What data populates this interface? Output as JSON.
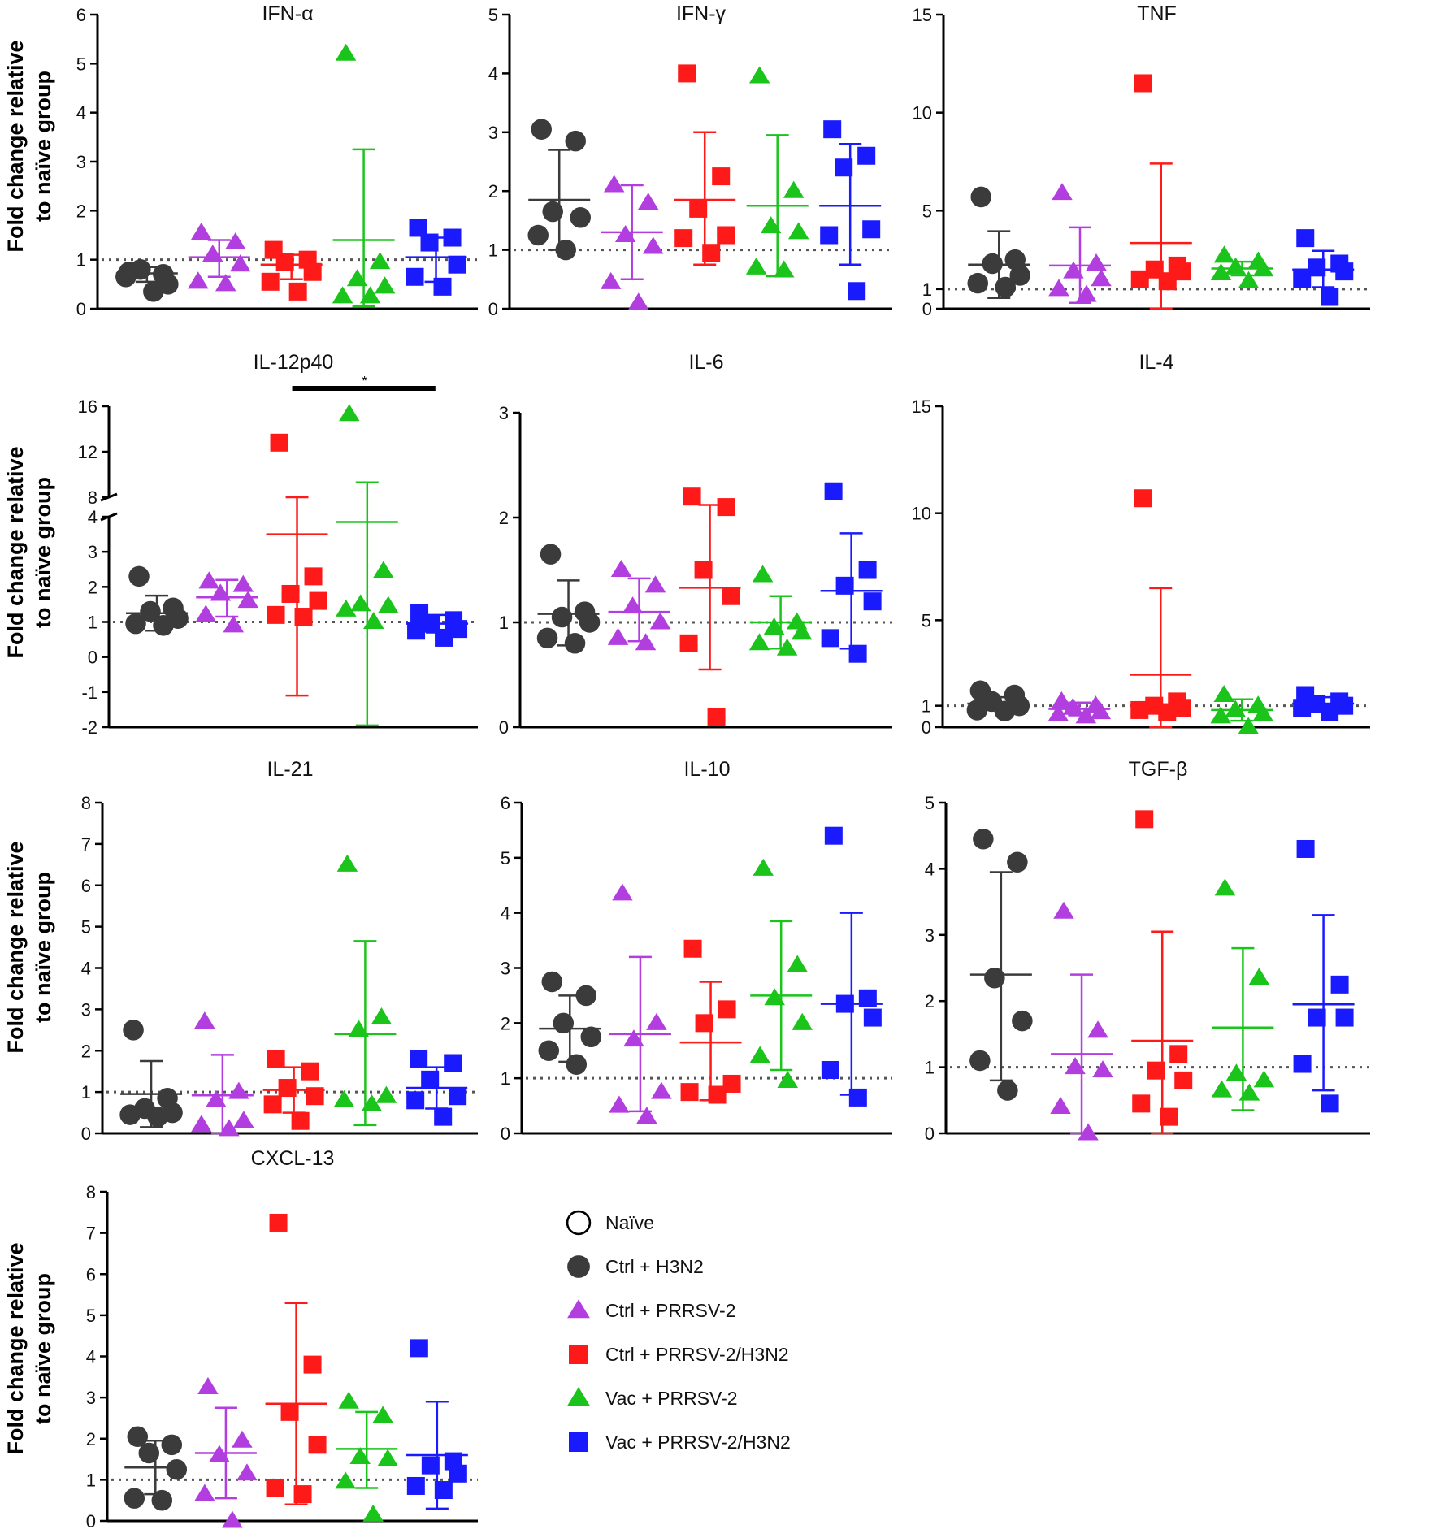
{
  "chart_data": [
    {
      "type": "scatter",
      "title": "IFN-α",
      "ylabel": "Fold change relative to naïve group",
      "ylim": [
        0,
        6
      ],
      "yticks": [
        0,
        1,
        2,
        3,
        4,
        5,
        6
      ],
      "groups": [
        {
          "series": 0,
          "points": [
            0.75,
            0.7,
            0.8,
            0.5,
            0.65,
            0.35
          ],
          "mean": 0.72,
          "sd_low": 0.55,
          "sd_high": 0.85
        },
        {
          "series": 1,
          "points": [
            1.55,
            1.35,
            1.1,
            0.9,
            0.55,
            0.5
          ],
          "mean": 1.05,
          "sd_low": 0.65,
          "sd_high": 1.4
        },
        {
          "series": 2,
          "points": [
            1.2,
            1.0,
            0.95,
            0.75,
            0.55,
            0.35
          ],
          "mean": 0.9,
          "sd_low": 0.6,
          "sd_high": 1.1
        },
        {
          "series": 3,
          "points": [
            5.2,
            0.95,
            0.6,
            0.45,
            0.25,
            0.25
          ],
          "mean": 1.4,
          "sd_low": 0.05,
          "sd_high": 3.25
        },
        {
          "series": 4,
          "points": [
            1.65,
            1.45,
            1.35,
            0.9,
            0.65,
            0.45
          ],
          "mean": 1.05,
          "sd_low": 0.55,
          "sd_high": 1.45
        }
      ]
    },
    {
      "type": "scatter",
      "title": "IFN-γ",
      "ylabel": "",
      "ylim": [
        0,
        5
      ],
      "yticks": [
        0,
        1,
        2,
        3,
        4,
        5
      ],
      "groups": [
        {
          "series": 0,
          "points": [
            3.05,
            2.85,
            1.65,
            1.55,
            1.25,
            1.0
          ],
          "mean": 1.85,
          "sd_low": 1.0,
          "sd_high": 2.7
        },
        {
          "series": 1,
          "points": [
            2.1,
            1.8,
            1.25,
            1.05,
            0.45,
            0.1
          ],
          "mean": 1.3,
          "sd_low": 0.5,
          "sd_high": 2.1
        },
        {
          "series": 2,
          "points": [
            4.0,
            2.25,
            1.7,
            1.25,
            1.2,
            0.95
          ],
          "mean": 1.85,
          "sd_low": 0.75,
          "sd_high": 3.0
        },
        {
          "series": 3,
          "points": [
            3.95,
            2.0,
            1.4,
            1.3,
            0.7,
            0.65
          ],
          "mean": 1.75,
          "sd_low": 0.55,
          "sd_high": 2.95
        },
        {
          "series": 4,
          "points": [
            3.05,
            2.6,
            2.4,
            1.35,
            1.25,
            0.3
          ],
          "mean": 1.75,
          "sd_low": 0.75,
          "sd_high": 2.8
        }
      ]
    },
    {
      "type": "scatter",
      "title": "TNF",
      "ylabel": "",
      "ylim": [
        0,
        15
      ],
      "yticks": [
        0,
        1,
        5,
        10,
        15
      ],
      "groups": [
        {
          "series": 0,
          "points": [
            5.7,
            2.5,
            2.3,
            1.7,
            1.3,
            1.1
          ],
          "mean": 2.25,
          "sd_low": 0.55,
          "sd_high": 3.95
        },
        {
          "series": 1,
          "points": [
            5.9,
            2.3,
            1.9,
            1.5,
            1.0,
            0.7
          ],
          "mean": 2.2,
          "sd_low": 0.3,
          "sd_high": 4.15
        },
        {
          "series": 2,
          "points": [
            11.5,
            2.2,
            2.0,
            1.9,
            1.5,
            1.4
          ],
          "mean": 3.35,
          "sd_low": 0.0,
          "sd_high": 7.4
        },
        {
          "series": 3,
          "points": [
            2.7,
            2.4,
            2.1,
            2.0,
            1.8,
            1.4
          ],
          "mean": 2.05,
          "sd_low": 1.7,
          "sd_high": 2.4
        },
        {
          "series": 4,
          "points": [
            3.6,
            2.3,
            2.1,
            1.9,
            1.5,
            0.6
          ],
          "mean": 2.0,
          "sd_low": 1.1,
          "sd_high": 2.95
        }
      ]
    },
    {
      "type": "scatter",
      "title": "IL-12p40",
      "ylabel": "Fold change relative to naïve group",
      "ylim": [
        -2,
        16
      ],
      "yticks": [
        -2,
        -1,
        0,
        1,
        2,
        3,
        4,
        8,
        12,
        16
      ],
      "axis_break": [
        4,
        8
      ],
      "significance": {
        "from_group": 2,
        "to_group": 3,
        "label": "*"
      },
      "groups": [
        {
          "series": 0,
          "points": [
            2.3,
            1.4,
            1.3,
            1.1,
            0.95,
            0.9
          ],
          "mean": 1.25,
          "sd_low": 0.75,
          "sd_high": 1.75
        },
        {
          "series": 1,
          "points": [
            2.15,
            2.05,
            1.8,
            1.6,
            1.2,
            0.9
          ],
          "mean": 1.7,
          "sd_low": 1.15,
          "sd_high": 2.2
        },
        {
          "series": 2,
          "points": [
            12.8,
            2.3,
            1.8,
            1.6,
            1.2,
            1.15
          ],
          "mean": 3.5,
          "sd_low": -1.1,
          "sd_high": 8.0
        },
        {
          "series": 3,
          "points": [
            15.3,
            2.45,
            1.5,
            1.45,
            1.35,
            1.0
          ],
          "mean": 3.85,
          "sd_low": -1.95,
          "sd_high": 9.3
        },
        {
          "series": 4,
          "points": [
            1.25,
            1.05,
            0.95,
            0.8,
            0.75,
            0.55
          ],
          "mean": 0.95,
          "sd_low": 0.7,
          "sd_high": 1.2
        }
      ]
    },
    {
      "type": "scatter",
      "title": "IL-6",
      "ylabel": "",
      "ylim": [
        0,
        3
      ],
      "yticks": [
        0,
        1,
        2,
        3
      ],
      "groups": [
        {
          "series": 0,
          "points": [
            1.65,
            1.1,
            1.05,
            1.0,
            0.85,
            0.8
          ],
          "mean": 1.08,
          "sd_low": 0.78,
          "sd_high": 1.4
        },
        {
          "series": 1,
          "points": [
            1.5,
            1.35,
            1.15,
            1.0,
            0.85,
            0.8
          ],
          "mean": 1.1,
          "sd_low": 0.82,
          "sd_high": 1.42
        },
        {
          "series": 2,
          "points": [
            2.2,
            2.1,
            1.5,
            1.25,
            0.8,
            0.1
          ],
          "mean": 1.33,
          "sd_low": 0.55,
          "sd_high": 2.12
        },
        {
          "series": 3,
          "points": [
            1.45,
            1.0,
            0.95,
            0.9,
            0.8,
            0.75
          ],
          "mean": 1.0,
          "sd_low": 0.75,
          "sd_high": 1.25
        },
        {
          "series": 4,
          "points": [
            2.25,
            1.5,
            1.35,
            1.2,
            0.85,
            0.7
          ],
          "mean": 1.3,
          "sd_low": 0.75,
          "sd_high": 1.85
        }
      ]
    },
    {
      "type": "scatter",
      "title": "IL-4",
      "ylabel": "",
      "ylim": [
        0,
        15
      ],
      "yticks": [
        0,
        1,
        5,
        10,
        15
      ],
      "groups": [
        {
          "series": 0,
          "points": [
            1.7,
            1.5,
            1.2,
            1.0,
            0.8,
            0.75
          ],
          "mean": 1.1,
          "sd_low": 0.8,
          "sd_high": 1.4
        },
        {
          "series": 1,
          "points": [
            1.2,
            1.0,
            0.9,
            0.7,
            0.6,
            0.5
          ],
          "mean": 0.85,
          "sd_low": 0.55,
          "sd_high": 1.15
        },
        {
          "series": 2,
          "points": [
            10.7,
            1.2,
            1.0,
            0.9,
            0.8,
            0.7
          ],
          "mean": 2.45,
          "sd_low": 0.0,
          "sd_high": 6.5
        },
        {
          "series": 3,
          "points": [
            1.5,
            1.0,
            0.8,
            0.6,
            0.5,
            0.0
          ],
          "mean": 0.8,
          "sd_low": 0.3,
          "sd_high": 1.3
        },
        {
          "series": 4,
          "points": [
            1.5,
            1.2,
            1.1,
            1.0,
            0.9,
            0.7
          ],
          "mean": 1.1,
          "sd_low": 0.8,
          "sd_high": 1.4
        }
      ]
    },
    {
      "type": "scatter",
      "title": "IL-21",
      "ylabel": "Fold change relative to naïve group",
      "ylim": [
        0,
        8
      ],
      "yticks": [
        0,
        1,
        2,
        3,
        4,
        5,
        6,
        7,
        8
      ],
      "groups": [
        {
          "series": 0,
          "points": [
            2.5,
            0.85,
            0.6,
            0.5,
            0.45,
            0.4
          ],
          "mean": 0.95,
          "sd_low": 0.15,
          "sd_high": 1.75
        },
        {
          "series": 1,
          "points": [
            2.7,
            1.0,
            0.8,
            0.3,
            0.2,
            0.1
          ],
          "mean": 0.92,
          "sd_low": 0.0,
          "sd_high": 1.9
        },
        {
          "series": 2,
          "points": [
            1.8,
            1.5,
            1.1,
            0.9,
            0.7,
            0.3
          ],
          "mean": 1.05,
          "sd_low": 0.5,
          "sd_high": 1.6
        },
        {
          "series": 3,
          "points": [
            6.5,
            2.8,
            2.5,
            0.9,
            0.8,
            0.7
          ],
          "mean": 2.4,
          "sd_low": 0.2,
          "sd_high": 4.65
        },
        {
          "series": 4,
          "points": [
            1.8,
            1.7,
            1.3,
            0.9,
            0.8,
            0.4
          ],
          "mean": 1.1,
          "sd_low": 0.6,
          "sd_high": 1.6
        }
      ]
    },
    {
      "type": "scatter",
      "title": "IL-10",
      "ylabel": "",
      "ylim": [
        0,
        6
      ],
      "yticks": [
        0,
        1,
        2,
        3,
        4,
        5,
        6
      ],
      "groups": [
        {
          "series": 0,
          "points": [
            2.75,
            2.5,
            2.0,
            1.75,
            1.5,
            1.25
          ],
          "mean": 1.9,
          "sd_low": 1.3,
          "sd_high": 2.5
        },
        {
          "series": 1,
          "points": [
            4.35,
            2.0,
            1.7,
            0.75,
            0.5,
            0.3
          ],
          "mean": 1.8,
          "sd_low": 0.4,
          "sd_high": 3.2
        },
        {
          "series": 2,
          "points": [
            3.35,
            2.25,
            2.0,
            0.9,
            0.75,
            0.7
          ],
          "mean": 1.65,
          "sd_low": 0.6,
          "sd_high": 2.75
        },
        {
          "series": 3,
          "points": [
            4.8,
            3.05,
            2.45,
            2.0,
            1.4,
            0.95
          ],
          "mean": 2.5,
          "sd_low": 1.15,
          "sd_high": 3.85
        },
        {
          "series": 4,
          "points": [
            5.4,
            2.45,
            2.35,
            2.1,
            1.15,
            0.65
          ],
          "mean": 2.35,
          "sd_low": 0.7,
          "sd_high": 4.0
        }
      ]
    },
    {
      "type": "scatter",
      "title": "TGF-β",
      "ylabel": "",
      "ylim": [
        0,
        5
      ],
      "yticks": [
        0,
        1,
        2,
        3,
        4,
        5
      ],
      "groups": [
        {
          "series": 0,
          "points": [
            4.45,
            4.1,
            2.35,
            1.7,
            1.1,
            0.65
          ],
          "mean": 2.4,
          "sd_low": 0.8,
          "sd_high": 3.95
        },
        {
          "series": 1,
          "points": [
            3.35,
            1.55,
            1.0,
            0.95,
            0.4,
            0.0
          ],
          "mean": 1.2,
          "sd_low": 0.0,
          "sd_high": 2.4
        },
        {
          "series": 2,
          "points": [
            4.75,
            1.2,
            0.95,
            0.8,
            0.45,
            0.25
          ],
          "mean": 1.4,
          "sd_low": 0.0,
          "sd_high": 3.05
        },
        {
          "series": 3,
          "points": [
            3.7,
            2.35,
            0.9,
            0.8,
            0.65,
            0.6
          ],
          "mean": 1.6,
          "sd_low": 0.35,
          "sd_high": 2.8
        },
        {
          "series": 4,
          "points": [
            4.3,
            2.25,
            1.75,
            1.75,
            1.05,
            0.45
          ],
          "mean": 1.95,
          "sd_low": 0.65,
          "sd_high": 3.3
        }
      ]
    },
    {
      "type": "scatter",
      "title": "CXCL-13",
      "ylabel": "Fold change relative to naïve group",
      "ylim": [
        0,
        8
      ],
      "yticks": [
        0,
        1,
        2,
        3,
        4,
        5,
        6,
        7,
        8
      ],
      "groups": [
        {
          "series": 0,
          "points": [
            2.05,
            1.85,
            1.65,
            1.25,
            0.55,
            0.5
          ],
          "mean": 1.3,
          "sd_low": 0.65,
          "sd_high": 1.95
        },
        {
          "series": 1,
          "points": [
            3.25,
            1.95,
            1.6,
            1.15,
            0.65,
            0.0
          ],
          "mean": 1.65,
          "sd_low": 0.55,
          "sd_high": 2.75
        },
        {
          "series": 2,
          "points": [
            7.25,
            3.8,
            2.65,
            1.85,
            0.8,
            0.65
          ],
          "mean": 2.85,
          "sd_low": 0.4,
          "sd_high": 5.3
        },
        {
          "series": 3,
          "points": [
            2.9,
            2.55,
            1.55,
            1.5,
            0.95,
            0.15
          ],
          "mean": 1.75,
          "sd_low": 0.8,
          "sd_high": 2.65
        },
        {
          "series": 4,
          "points": [
            4.2,
            1.45,
            1.35,
            1.15,
            0.85,
            0.75
          ],
          "mean": 1.6,
          "sd_low": 0.3,
          "sd_high": 2.9
        }
      ]
    }
  ],
  "legend": {
    "items": [
      {
        "label": "Naïve",
        "symbol": "open-circle",
        "color": "#000000"
      },
      {
        "label": "Ctrl + H3N2",
        "symbol": "circle",
        "color": "#3b3b3b"
      },
      {
        "label": "Ctrl + PRRSV-2",
        "symbol": "triangle",
        "color": "#b33ee0"
      },
      {
        "label": "Ctrl + PRRSV-2/H3N2",
        "symbol": "square",
        "color": "#ff1a1a"
      },
      {
        "label": "Vac + PRRSV-2",
        "symbol": "triangle",
        "color": "#1bc41b"
      },
      {
        "label": "Vac + PRRSV-2/H3N2",
        "symbol": "square",
        "color": "#1a1aff"
      }
    ]
  }
}
